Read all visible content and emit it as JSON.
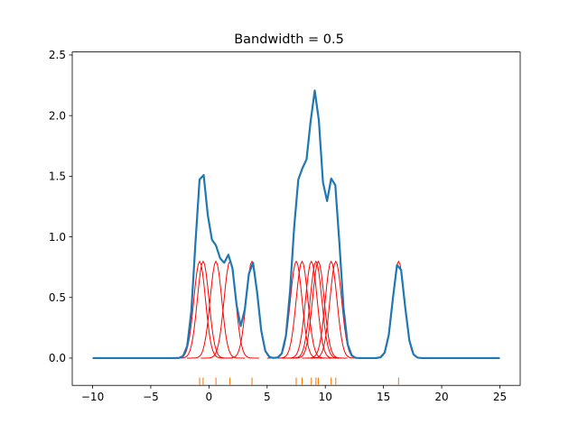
{
  "chart_data": {
    "type": "line",
    "title": "Bandwidth = 0.5",
    "xlabel": "",
    "ylabel": "",
    "xlim": [
      -11.75,
      26.75
    ],
    "ylim": [
      -0.225,
      2.525
    ],
    "xticks": [
      -10,
      -5,
      0,
      5,
      10,
      15,
      20,
      25
    ],
    "yticks": [
      0.0,
      0.5,
      1.0,
      1.5,
      2.0,
      2.5
    ],
    "xtick_labels": [
      "−10",
      "−5",
      "0",
      "5",
      "10",
      "15",
      "20",
      "25"
    ],
    "ytick_labels": [
      "0.0",
      "0.5",
      "1.0",
      "1.5",
      "2.0",
      "2.5"
    ],
    "grid": false,
    "legend": "none",
    "bandwidth": 0.5,
    "kernel_peak": 0.798,
    "samples": [
      -0.8,
      -0.5,
      0.6,
      1.8,
      3.7,
      7.5,
      8.0,
      8.8,
      9.2,
      9.4,
      10.5,
      10.9,
      16.3
    ],
    "kde_x_range": [
      -10,
      25
    ],
    "kde_points": 100,
    "kernel_half_width": 2.5,
    "rug_y": -0.19,
    "colors": {
      "kde": "#1f77b4",
      "kernels": "#ff0000",
      "rug": "#ff7f0e",
      "axes": "#000000"
    }
  }
}
